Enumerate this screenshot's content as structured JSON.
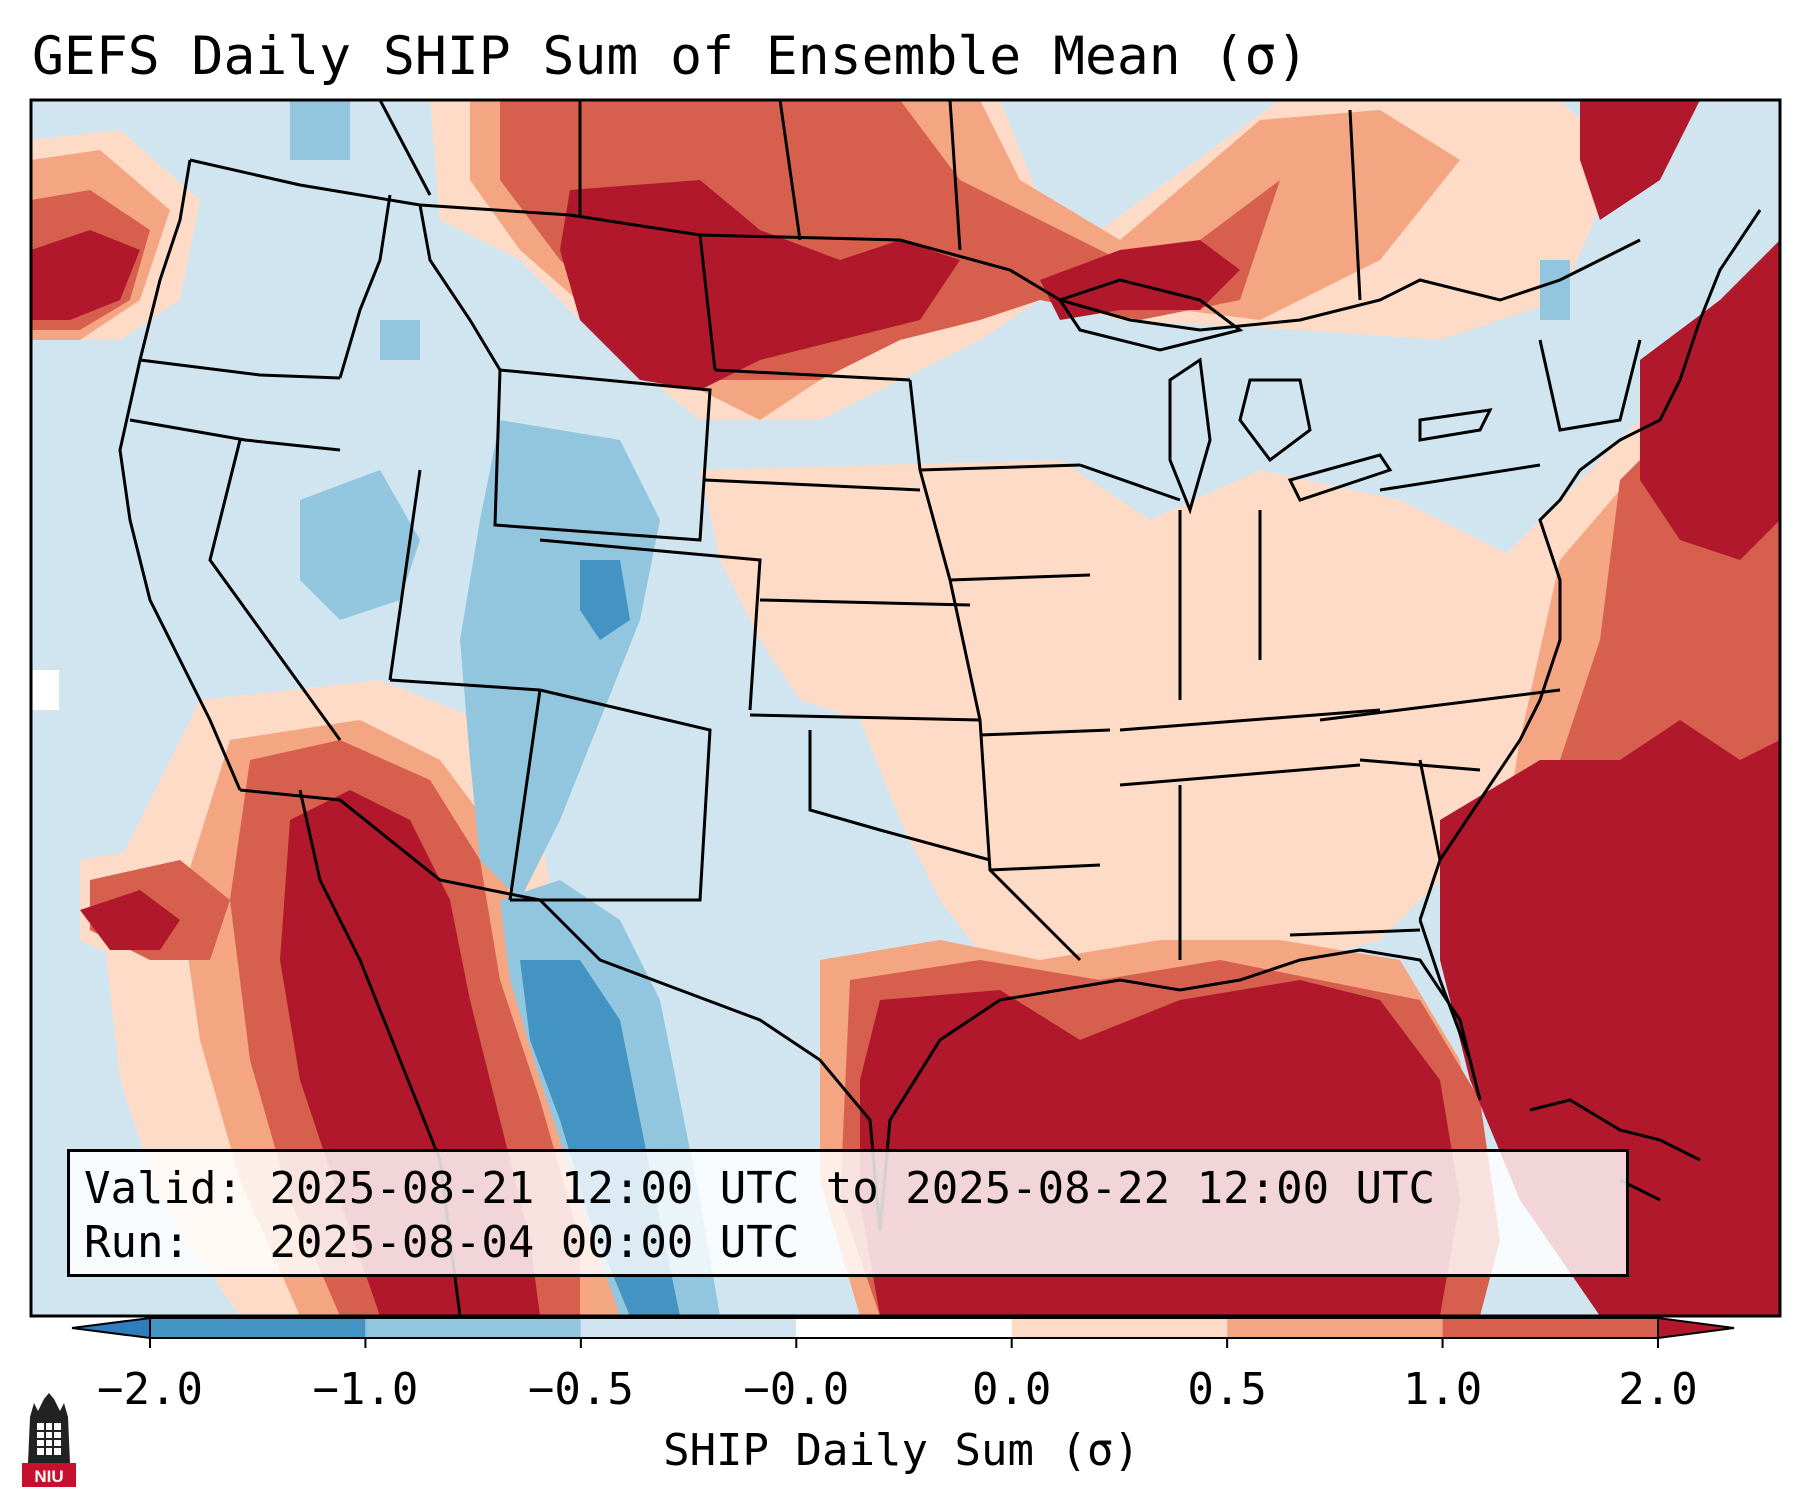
{
  "title": "GEFS Daily SHIP Sum of Ensemble Mean (σ)",
  "info": {
    "valid_label": "Valid:",
    "valid_value": "2025-08-21 12:00 UTC to 2025-08-22 12:00 UTC",
    "run_label": "Run:",
    "run_value": "2025-08-04 00:00 UTC"
  },
  "colorbar": {
    "label": "SHIP Daily Sum (σ)",
    "ticks": [
      "−2.0",
      "−1.0",
      "−0.5",
      "−0.0",
      "0.0",
      "0.5",
      "1.0",
      "2.0"
    ],
    "colors": [
      "#2f7cbf",
      "#4393c3",
      "#92c5de",
      "#d1e5f0",
      "#fddbc7",
      "#f4a582",
      "#d6604d",
      "#b2182b"
    ],
    "bins": [
      {
        "lo": -2.0,
        "hi": -1.0,
        "color": "#4393c3"
      },
      {
        "lo": -1.0,
        "hi": -0.5,
        "color": "#92c5de"
      },
      {
        "lo": -0.5,
        "hi": -0.0,
        "color": "#d1e5f0"
      },
      {
        "lo": -0.0,
        "hi": 0.0,
        "color": "#ffffff"
      },
      {
        "lo": 0.0,
        "hi": 0.5,
        "color": "#fddbc7"
      },
      {
        "lo": 0.5,
        "hi": 1.0,
        "color": "#f4a582"
      },
      {
        "lo": 1.0,
        "hi": 2.0,
        "color": "#d6604d"
      }
    ],
    "extend_min_color": "#2f7cbf",
    "extend_max_color": "#b2182b"
  },
  "logo": {
    "text": "NIU"
  },
  "map_colors": {
    "strong_blue": "#4393c3",
    "mid_blue": "#92c5de",
    "light_blue": "#d1e5f0",
    "light_red": "#fddbc7",
    "mid_red": "#f4a582",
    "red": "#d6604d",
    "dark_red": "#b2182b"
  }
}
